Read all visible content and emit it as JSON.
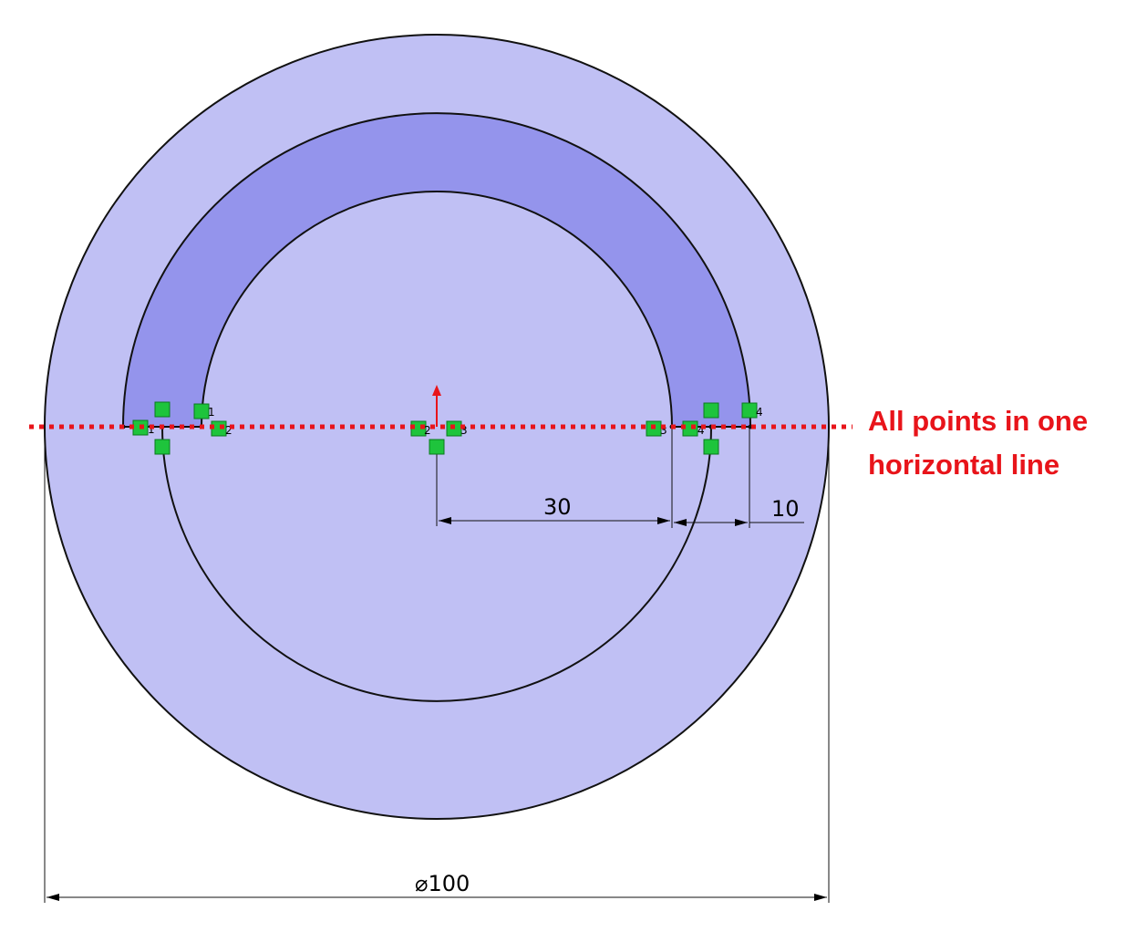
{
  "sketch": {
    "dimensions": {
      "inner_offset": "30",
      "slot_width": "10",
      "diameter": "⌀100"
    },
    "annotation": {
      "line1": "All points in one",
      "line2": "horizontal line"
    },
    "relation_tags": [
      "1",
      "2",
      "1",
      "2",
      "3",
      "4",
      "3",
      "4"
    ]
  }
}
